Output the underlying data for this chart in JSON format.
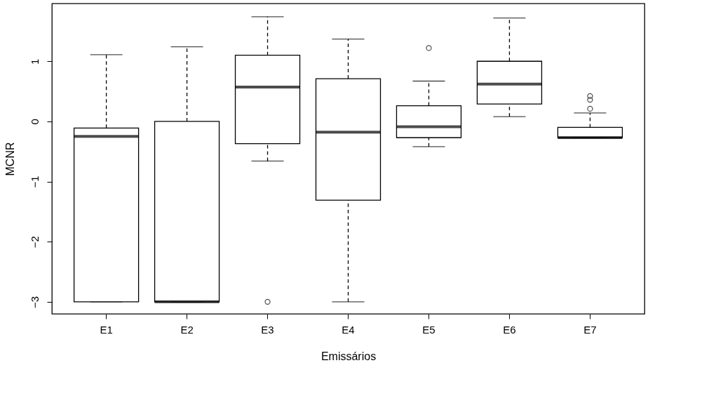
{
  "chart_data": {
    "type": "box",
    "xlabel": "Emissários",
    "ylabel": "MCNR",
    "categories": [
      "E1",
      "E2",
      "E3",
      "E4",
      "E5",
      "E6",
      "E7"
    ],
    "boxes": [
      {
        "low": -3,
        "q1": -3,
        "median": -0.25,
        "q3": -0.11,
        "high": 1.11
      },
      {
        "low": -3,
        "q1": -3,
        "median": -3,
        "q3": 0,
        "high": 1.24
      },
      {
        "low": -0.66,
        "q1": -0.37,
        "median": 0.57,
        "q3": 1.1,
        "high": 1.74,
        "outliers": [
          -3
        ]
      },
      {
        "low": -3,
        "q1": -1.31,
        "median": -0.18,
        "q3": 0.71,
        "high": 1.37
      },
      {
        "low": -0.42,
        "q1": -0.27,
        "median": -0.09,
        "q3": 0.26,
        "high": 0.67,
        "outliers": [
          1.22
        ]
      },
      {
        "low": 0.08,
        "q1": 0.29,
        "median": 0.62,
        "q3": 1.0,
        "high": 1.72
      },
      {
        "low": -0.27,
        "q1": -0.27,
        "median": -0.27,
        "q3": -0.1,
        "high": 0.14,
        "outliers": [
          0.42,
          0.36,
          0.21
        ]
      }
    ],
    "ylim": [
      -3.2,
      1.96
    ],
    "yticks": [
      -3,
      -2,
      -1,
      0,
      1
    ],
    "grid": false
  }
}
